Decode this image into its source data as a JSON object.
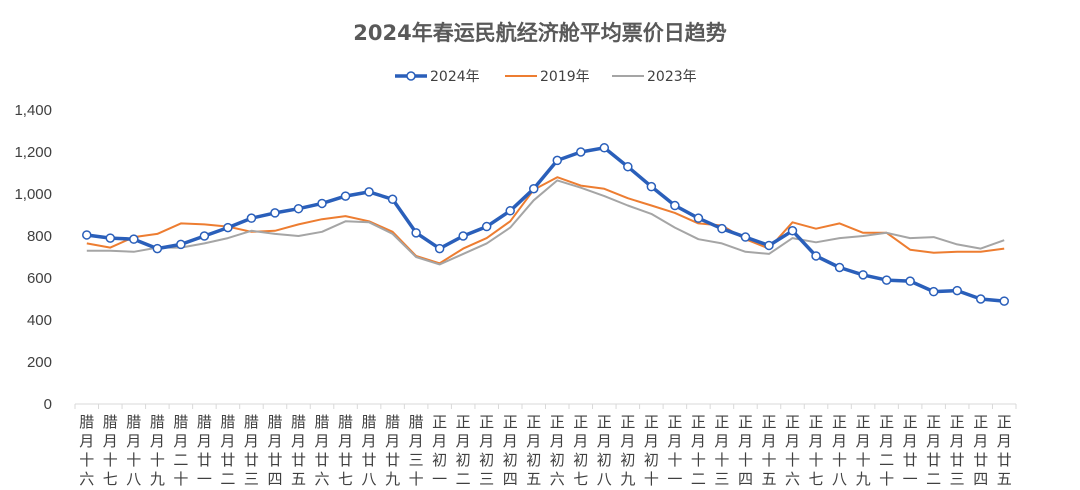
{
  "chart_data": {
    "type": "line",
    "title": "2024年春运民航经济舱平均票价日趋势",
    "xlabel": "",
    "ylabel": "",
    "ylim": [
      0,
      1400
    ],
    "yticks": [
      "0",
      "200",
      "400",
      "600",
      "800",
      "1,000",
      "1,200",
      "1,400"
    ],
    "grid": false,
    "legend_position": "top-center",
    "categories": [
      "腊月十六",
      "腊月十七",
      "腊月十八",
      "腊月十九",
      "腊月二十",
      "腊月廿一",
      "腊月廿二",
      "腊月廿三",
      "腊月廿四",
      "腊月廿五",
      "腊月廿六",
      "腊月廿七",
      "腊月廿八",
      "腊月廿九",
      "腊月三十",
      "正月初一",
      "正月初二",
      "正月初三",
      "正月初四",
      "正月初五",
      "正月初六",
      "正月初七",
      "正月初八",
      "正月初九",
      "正月初十",
      "正月十一",
      "正月十二",
      "正月十三",
      "正月十四",
      "正月十五",
      "正月十六",
      "正月十七",
      "正月十八",
      "正月十九",
      "正月二十",
      "正月廿一",
      "正月廿二",
      "正月廿三",
      "正月廿四",
      "正月廿五"
    ],
    "series": [
      {
        "name": "2024年",
        "color": "#2a5fba",
        "marker": "circle",
        "values": [
          805,
          790,
          785,
          740,
          760,
          800,
          840,
          885,
          910,
          930,
          955,
          990,
          1010,
          975,
          815,
          740,
          800,
          845,
          920,
          1025,
          1160,
          1200,
          1220,
          1130,
          1035,
          945,
          885,
          835,
          795,
          755,
          825,
          705,
          650,
          615,
          590,
          585,
          535,
          540,
          500,
          490
        ]
      },
      {
        "name": "2019年",
        "color": "#ed7d31",
        "marker": "none",
        "values": [
          765,
          745,
          795,
          810,
          860,
          855,
          845,
          820,
          825,
          855,
          880,
          895,
          870,
          820,
          705,
          670,
          740,
          790,
          870,
          1020,
          1080,
          1040,
          1025,
          980,
          945,
          910,
          860,
          850,
          785,
          740,
          865,
          835,
          860,
          815,
          815,
          735,
          720,
          725,
          725,
          740
        ]
      },
      {
        "name": "2023年",
        "color": "#a5a5a5",
        "marker": "none",
        "values": [
          730,
          730,
          725,
          745,
          745,
          765,
          790,
          825,
          810,
          800,
          820,
          870,
          865,
          810,
          700,
          665,
          715,
          765,
          840,
          970,
          1065,
          1030,
          990,
          945,
          905,
          840,
          785,
          765,
          725,
          715,
          790,
          770,
          790,
          800,
          815,
          790,
          795,
          760,
          740,
          780
        ]
      }
    ]
  }
}
